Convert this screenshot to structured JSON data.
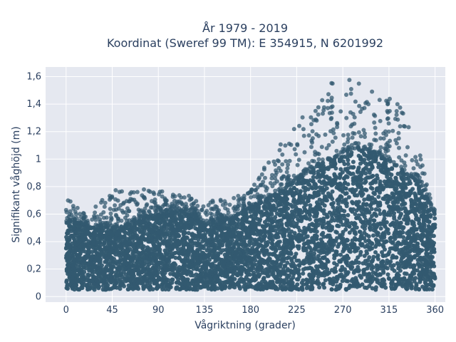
{
  "chart_data": {
    "type": "scatter",
    "title_lines": [
      "År 1979 - 2019",
      "Koordinat (Sweref 99 TM): E 354915, N 6201992"
    ],
    "xlabel": "Vågriktning (grader)",
    "ylabel": "Signifikant våghöjd (m)",
    "xlim": [
      -20,
      370
    ],
    "ylim": [
      -0.04,
      1.67
    ],
    "x_ticks": [
      0,
      45,
      90,
      135,
      180,
      225,
      270,
      315,
      360
    ],
    "x_tick_labels": [
      "0",
      "45",
      "90",
      "135",
      "180",
      "225",
      "270",
      "315",
      "360"
    ],
    "y_ticks": [
      0,
      0.2,
      0.4,
      0.6,
      0.8,
      1.0,
      1.2,
      1.4,
      1.6
    ],
    "y_tick_labels": [
      "0",
      "0,2",
      "0,4",
      "0,6",
      "0,8",
      "1",
      "1,2",
      "1,4",
      "1,6"
    ],
    "grid": true,
    "marker_color": "#335a70",
    "background_color": "#e5e8f0",
    "envelope": {
      "direction": [
        0,
        20,
        45,
        90,
        110,
        135,
        160,
        180,
        200,
        225,
        245,
        260,
        270,
        280,
        300,
        315,
        330,
        345,
        360
      ],
      "dense_max_height": [
        0.55,
        0.52,
        0.5,
        0.6,
        0.62,
        0.55,
        0.56,
        0.65,
        0.72,
        0.85,
        0.95,
        1.0,
        1.05,
        1.08,
        1.05,
        0.98,
        0.92,
        0.82,
        0.6
      ],
      "outlier_max_height": [
        0.72,
        0.6,
        0.78,
        0.78,
        0.76,
        0.7,
        0.72,
        0.78,
        1.02,
        1.3,
        1.48,
        1.58,
        1.6,
        1.58,
        1.5,
        1.5,
        1.38,
        1.05,
        0.62
      ]
    },
    "min_height": 0.05
  }
}
